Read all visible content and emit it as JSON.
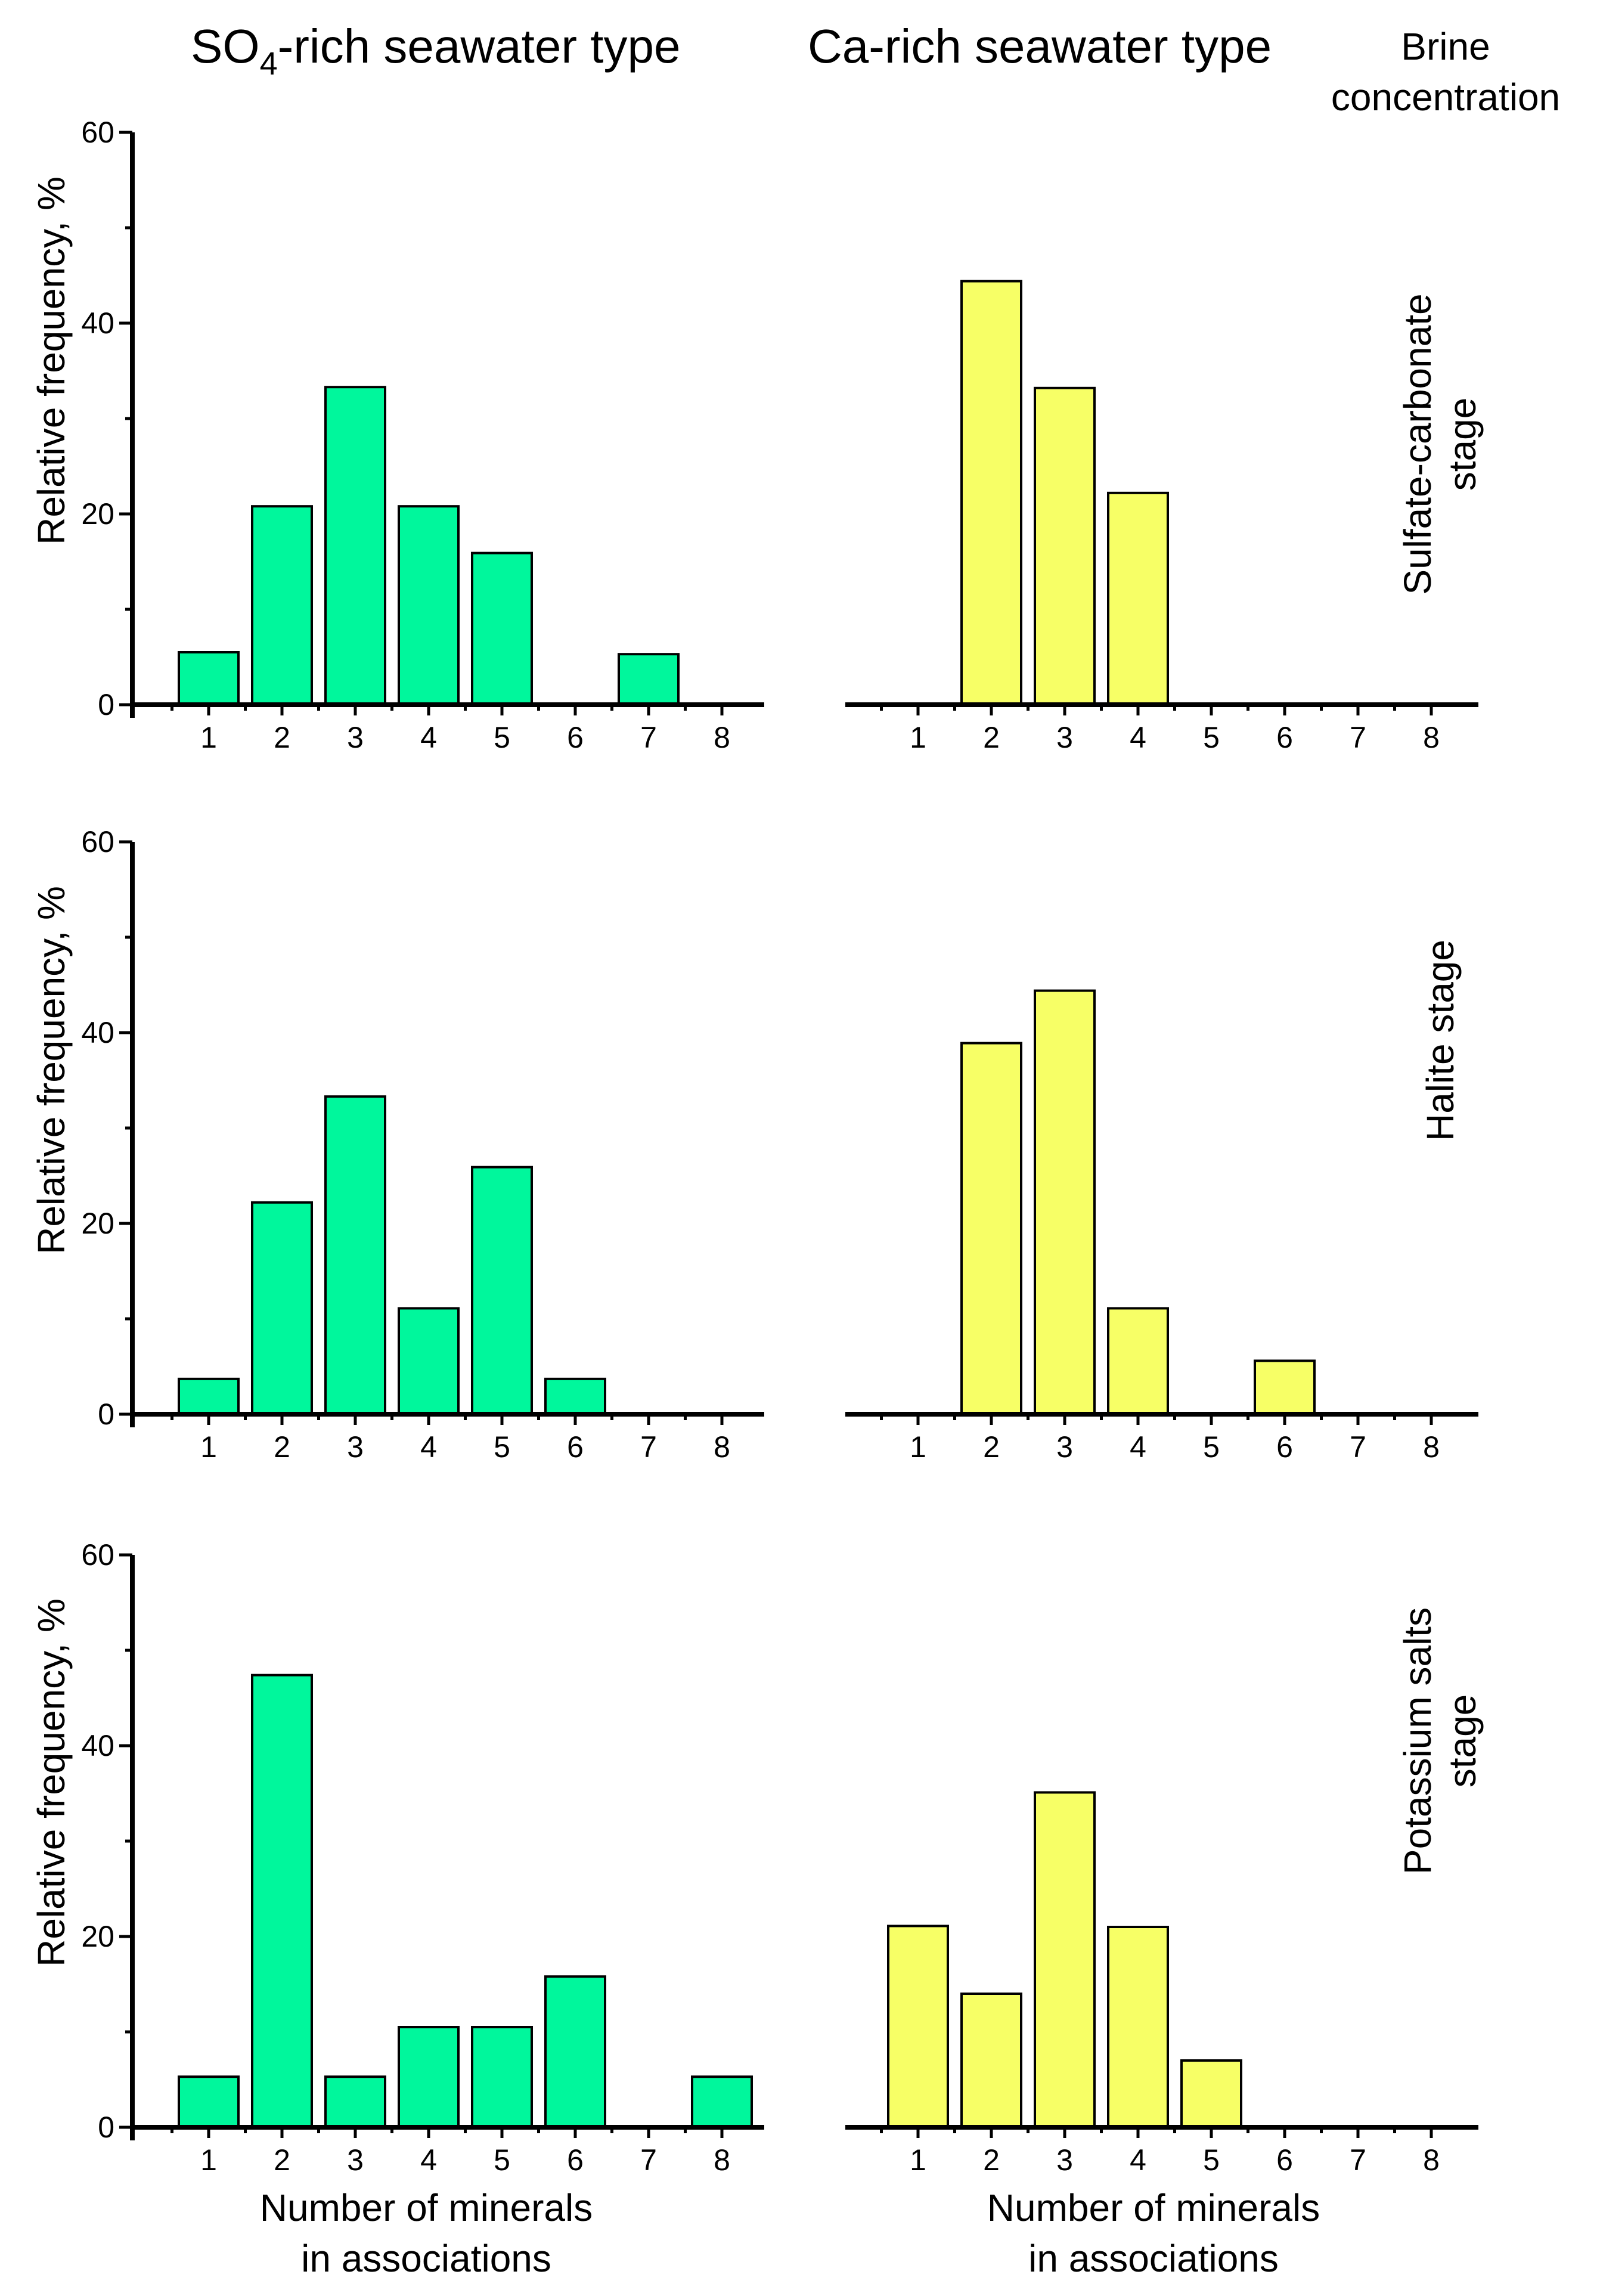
{
  "header": {
    "left_title_main": "SO",
    "left_title_sub": "4",
    "left_title_rest": "-rich seawater type",
    "right_title": "Ca-rich seawater type",
    "corner_title_line1": "Brine",
    "corner_title_line2": "concentration"
  },
  "axis_text": {
    "ylabel": "Relative frequency, %",
    "xlabel_line1": "Number of minerals",
    "xlabel_line2": "in associations"
  },
  "stages": [
    {
      "lines": [
        "Sulfate-carbonate",
        "stage"
      ]
    },
    {
      "lines": [
        "Halite stage"
      ]
    },
    {
      "lines": [
        "Potassium salts",
        "stage"
      ]
    }
  ],
  "colors": {
    "so4": "#00F79C",
    "ca": "#F7FF66",
    "axis": "#000000"
  },
  "chart_data": [
    {
      "type": "bar",
      "panel": "SO4-rich / Sulfate-carbonate stage",
      "categories": [
        "1",
        "2",
        "3",
        "4",
        "5",
        "6",
        "7",
        "8"
      ],
      "values": [
        5.5,
        20.8,
        33.3,
        20.8,
        15.9,
        0,
        5.3,
        0
      ],
      "ylim": [
        0,
        60
      ],
      "yticks": [
        "0",
        "20",
        "40",
        "60"
      ],
      "color": "#00F79C"
    },
    {
      "type": "bar",
      "panel": "Ca-rich / Sulfate-carbonate stage",
      "categories": [
        "1",
        "2",
        "3",
        "4",
        "5",
        "6",
        "7",
        "8"
      ],
      "values": [
        0,
        44.4,
        33.2,
        22.2,
        0,
        0,
        0,
        0
      ],
      "ylim": [
        0,
        60
      ],
      "color": "#F7FF66"
    },
    {
      "type": "bar",
      "panel": "SO4-rich / Halite stage",
      "categories": [
        "1",
        "2",
        "3",
        "4",
        "5",
        "6",
        "7",
        "8"
      ],
      "values": [
        3.7,
        22.2,
        33.3,
        11.1,
        25.9,
        3.7,
        0,
        0
      ],
      "ylim": [
        0,
        60
      ],
      "yticks": [
        "0",
        "20",
        "40",
        "60"
      ],
      "color": "#00F79C"
    },
    {
      "type": "bar",
      "panel": "Ca-rich / Halite stage",
      "categories": [
        "1",
        "2",
        "3",
        "4",
        "5",
        "6",
        "7",
        "8"
      ],
      "values": [
        0,
        38.9,
        44.4,
        11.1,
        0,
        5.6,
        0,
        0
      ],
      "ylim": [
        0,
        60
      ],
      "color": "#F7FF66"
    },
    {
      "type": "bar",
      "panel": "SO4-rich / Potassium salts stage",
      "categories": [
        "1",
        "2",
        "3",
        "4",
        "5",
        "6",
        "7",
        "8"
      ],
      "values": [
        5.3,
        47.4,
        5.3,
        10.5,
        10.5,
        15.8,
        0,
        5.3
      ],
      "ylim": [
        0,
        60
      ],
      "yticks": [
        "0",
        "20",
        "40",
        "60"
      ],
      "color": "#00F79C"
    },
    {
      "type": "bar",
      "panel": "Ca-rich / Potassium salts stage",
      "categories": [
        "1",
        "2",
        "3",
        "4",
        "5",
        "6",
        "7",
        "8"
      ],
      "values": [
        21.1,
        14.0,
        35.1,
        21.0,
        7.0,
        0,
        0,
        0
      ],
      "ylim": [
        0,
        60
      ],
      "color": "#F7FF66"
    }
  ]
}
